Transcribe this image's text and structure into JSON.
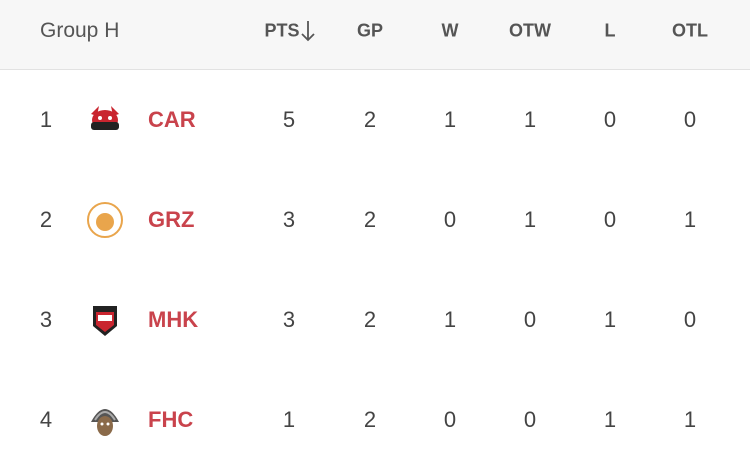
{
  "table": {
    "title": "Group H",
    "columns": [
      "PTS",
      "GP",
      "W",
      "OTW",
      "L",
      "OTL"
    ],
    "rows": [
      [
        1,
        "CAR",
        5,
        2,
        1,
        1,
        0,
        0
      ],
      [
        2,
        "GRZ",
        3,
        2,
        0,
        1,
        0,
        1
      ],
      [
        3,
        "MHK",
        3,
        2,
        1,
        0,
        1,
        0
      ],
      [
        4,
        "FHC",
        1,
        2,
        0,
        0,
        1,
        1
      ]
    ]
  }
}
